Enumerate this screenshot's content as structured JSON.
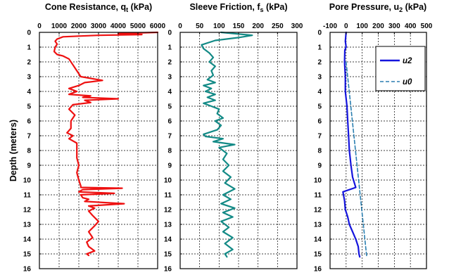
{
  "chart_data": {
    "type": "line",
    "ylabel": "Depth (meters)",
    "panels": [
      {
        "title_main": "Cone Resistance, q",
        "title_sub": "t",
        "title_unit": " (kPa)",
        "xlim": [
          0,
          6000
        ],
        "xticks": [
          "0",
          "1000",
          "2000",
          "3000",
          "4000",
          "5000",
          "6000"
        ],
        "ylim": [
          0,
          16
        ],
        "yticks": [
          "0",
          "1",
          "2",
          "3",
          "4",
          "5",
          "6",
          "7",
          "8",
          "9",
          "10",
          "11",
          "12",
          "13",
          "14",
          "15",
          "16"
        ],
        "series": [
          {
            "color": "#ee1111",
            "dashed": false,
            "points": [
              [
                6000,
                0.0
              ],
              [
                4000,
                0.08
              ],
              [
                5200,
                0.15
              ],
              [
                3000,
                0.2
              ],
              [
                2000,
                0.25
              ],
              [
                1200,
                0.3
              ],
              [
                900,
                0.45
              ],
              [
                800,
                0.6
              ],
              [
                900,
                0.8
              ],
              [
                800,
                1.0
              ],
              [
                750,
                1.3
              ],
              [
                900,
                1.5
              ],
              [
                1200,
                1.6
              ],
              [
                1500,
                1.8
              ],
              [
                1700,
                2.2
              ],
              [
                1900,
                2.6
              ],
              [
                2100,
                3.0
              ],
              [
                3200,
                3.25
              ],
              [
                2300,
                3.4
              ],
              [
                2000,
                3.6
              ],
              [
                1500,
                3.8
              ],
              [
                1900,
                4.0
              ],
              [
                1500,
                4.2
              ],
              [
                2600,
                4.3
              ],
              [
                2200,
                4.4
              ],
              [
                4000,
                4.5
              ],
              [
                2300,
                4.6
              ],
              [
                2600,
                4.75
              ],
              [
                1700,
                4.9
              ],
              [
                1500,
                5.2
              ],
              [
                1800,
                5.6
              ],
              [
                1600,
                6.0
              ],
              [
                1600,
                6.5
              ],
              [
                1400,
                6.8
              ],
              [
                1700,
                7.0
              ],
              [
                1500,
                7.2
              ],
              [
                1900,
                7.5
              ],
              [
                1900,
                8.0
              ],
              [
                1900,
                8.5
              ],
              [
                2000,
                9.0
              ],
              [
                1900,
                9.5
              ],
              [
                2000,
                10.0
              ],
              [
                2100,
                10.4
              ],
              [
                2100,
                10.5
              ],
              [
                4200,
                10.55
              ],
              [
                2200,
                10.65
              ],
              [
                2000,
                10.8
              ],
              [
                3800,
                10.9
              ],
              [
                2100,
                11.0
              ],
              [
                2200,
                11.2
              ],
              [
                2500,
                11.3
              ],
              [
                2300,
                11.45
              ],
              [
                4300,
                11.6
              ],
              [
                2500,
                11.75
              ],
              [
                2800,
                11.9
              ],
              [
                2500,
                12.1
              ],
              [
                2700,
                12.4
              ],
              [
                3000,
                12.8
              ],
              [
                2800,
                13.1
              ],
              [
                2500,
                13.5
              ],
              [
                2700,
                13.9
              ],
              [
                2400,
                14.2
              ],
              [
                2500,
                14.5
              ],
              [
                2800,
                14.8
              ],
              [
                2400,
                15.0
              ],
              [
                2500,
                15.1
              ]
            ]
          }
        ]
      },
      {
        "title_main": "Sleeve Friction,  f",
        "title_sub": "s",
        "title_unit": " (kPa)",
        "xlim": [
          0,
          300
        ],
        "xticks": [
          "0",
          "50",
          "100",
          "150",
          "200",
          "250",
          "300"
        ],
        "ylim": [
          0,
          16
        ],
        "yticks": [
          "0",
          "1",
          "2",
          "3",
          "4",
          "5",
          "6",
          "7",
          "8",
          "9",
          "10",
          "11",
          "12",
          "13",
          "14",
          "15",
          "16"
        ],
        "series": [
          {
            "color": "#138a86",
            "dashed": false,
            "points": [
              [
                105,
                0.0
              ],
              [
                185,
                0.2
              ],
              [
                150,
                0.35
              ],
              [
                90,
                0.55
              ],
              [
                55,
                0.85
              ],
              [
                60,
                1.1
              ],
              [
                75,
                1.4
              ],
              [
                85,
                1.7
              ],
              [
                75,
                2.0
              ],
              [
                90,
                2.3
              ],
              [
                80,
                2.6
              ],
              [
                85,
                2.9
              ],
              [
                70,
                3.2
              ],
              [
                90,
                3.4
              ],
              [
                60,
                3.6
              ],
              [
                80,
                3.8
              ],
              [
                65,
                4.0
              ],
              [
                90,
                4.2
              ],
              [
                70,
                4.4
              ],
              [
                90,
                4.6
              ],
              [
                60,
                4.8
              ],
              [
                80,
                5.0
              ],
              [
                100,
                5.2
              ],
              [
                95,
                5.5
              ],
              [
                110,
                5.8
              ],
              [
                90,
                6.0
              ],
              [
                105,
                6.3
              ],
              [
                95,
                6.6
              ],
              [
                60,
                6.9
              ],
              [
                65,
                7.05
              ],
              [
                110,
                7.2
              ],
              [
                85,
                7.4
              ],
              [
                140,
                7.6
              ],
              [
                100,
                7.8
              ],
              [
                120,
                8.2
              ],
              [
                110,
                8.6
              ],
              [
                125,
                9.0
              ],
              [
                110,
                9.4
              ],
              [
                130,
                9.8
              ],
              [
                115,
                10.2
              ],
              [
                140,
                10.6
              ],
              [
                110,
                11.0
              ],
              [
                130,
                11.3
              ],
              [
                105,
                11.6
              ],
              [
                140,
                11.9
              ],
              [
                110,
                12.2
              ],
              [
                135,
                12.5
              ],
              [
                105,
                12.8
              ],
              [
                125,
                13.2
              ],
              [
                110,
                13.5
              ],
              [
                135,
                13.9
              ],
              [
                115,
                14.3
              ],
              [
                135,
                14.7
              ],
              [
                115,
                15.0
              ],
              [
                120,
                15.2
              ]
            ]
          }
        ]
      },
      {
        "title_main": "Pore Pressure,  u",
        "title_sub": "2",
        "title_unit": " (kPa)",
        "xlim": [
          -100,
          500
        ],
        "xticks": [
          "-100",
          "0",
          "100",
          "200",
          "300",
          "400",
          "500"
        ],
        "ylim": [
          0,
          16
        ],
        "yticks": [
          "0",
          "1",
          "2",
          "3",
          "4",
          "5",
          "6",
          "7",
          "8",
          "9",
          "10",
          "11",
          "12",
          "13",
          "14",
          "15",
          "16"
        ],
        "legend_position": "top-right",
        "series": [
          {
            "name": "u2",
            "color": "#1515dd",
            "dashed": false,
            "points": [
              [
                0,
                0.0
              ],
              [
                -5,
                0.6
              ],
              [
                0,
                1.0
              ],
              [
                -8,
                1.2
              ],
              [
                -10,
                2.0
              ],
              [
                -5,
                3.0
              ],
              [
                -5,
                4.0
              ],
              [
                5,
                5.0
              ],
              [
                10,
                6.0
              ],
              [
                15,
                7.0
              ],
              [
                20,
                8.0
              ],
              [
                30,
                9.0
              ],
              [
                40,
                9.8
              ],
              [
                60,
                10.5
              ],
              [
                -20,
                10.8
              ],
              [
                -10,
                11.4
              ],
              [
                -5,
                12.0
              ],
              [
                10,
                12.5
              ],
              [
                20,
                13.0
              ],
              [
                40,
                13.5
              ],
              [
                60,
                14.0
              ],
              [
                75,
                14.5
              ],
              [
                80,
                15.0
              ],
              [
                85,
                15.2
              ]
            ]
          },
          {
            "name": "u0",
            "color": "#2b7fb0",
            "dashed": true,
            "points": [
              [
                0,
                2.0
              ],
              [
                128,
                15.2
              ]
            ]
          }
        ]
      }
    ]
  }
}
